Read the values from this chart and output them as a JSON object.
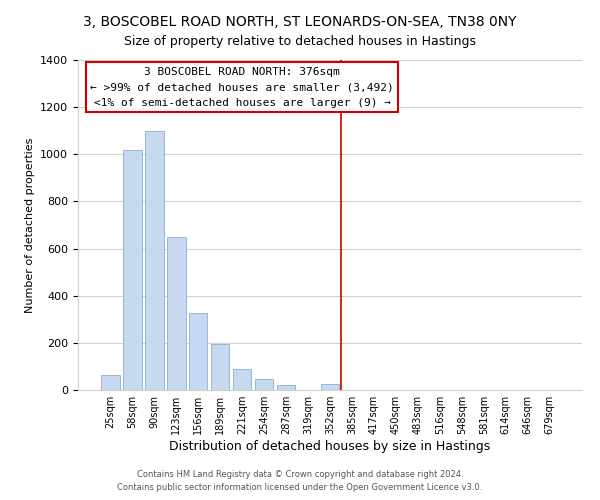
{
  "title": "3, BOSCOBEL ROAD NORTH, ST LEONARDS-ON-SEA, TN38 0NY",
  "subtitle": "Size of property relative to detached houses in Hastings",
  "xlabel": "Distribution of detached houses by size in Hastings",
  "ylabel": "Number of detached properties",
  "bar_labels": [
    "25sqm",
    "58sqm",
    "90sqm",
    "123sqm",
    "156sqm",
    "189sqm",
    "221sqm",
    "254sqm",
    "287sqm",
    "319sqm",
    "352sqm",
    "385sqm",
    "417sqm",
    "450sqm",
    "483sqm",
    "516sqm",
    "548sqm",
    "581sqm",
    "614sqm",
    "646sqm",
    "679sqm"
  ],
  "bar_values": [
    65,
    1020,
    1100,
    650,
    325,
    195,
    90,
    48,
    22,
    0,
    25,
    0,
    0,
    0,
    0,
    0,
    0,
    0,
    0,
    0,
    0
  ],
  "bar_color": "#c6d9f0",
  "bar_edge_color": "#8bafd4",
  "marker_label": "3 BOSCOBEL ROAD NORTH: 376sqm",
  "annotation_line1": "← >99% of detached houses are smaller (3,492)",
  "annotation_line2": "<1% of semi-detached houses are larger (9) →",
  "marker_color": "#cc0000",
  "ylim": [
    0,
    1400
  ],
  "yticks": [
    0,
    200,
    400,
    600,
    800,
    1000,
    1200,
    1400
  ],
  "footer1": "Contains HM Land Registry data © Crown copyright and database right 2024.",
  "footer2": "Contains public sector information licensed under the Open Government Licence v3.0.",
  "bg_color": "#ffffff",
  "grid_color": "#d0d0d0",
  "annotation_box_color": "#ffffff",
  "annotation_border_color": "#cc0000",
  "title_fontsize": 10,
  "subtitle_fontsize": 9
}
